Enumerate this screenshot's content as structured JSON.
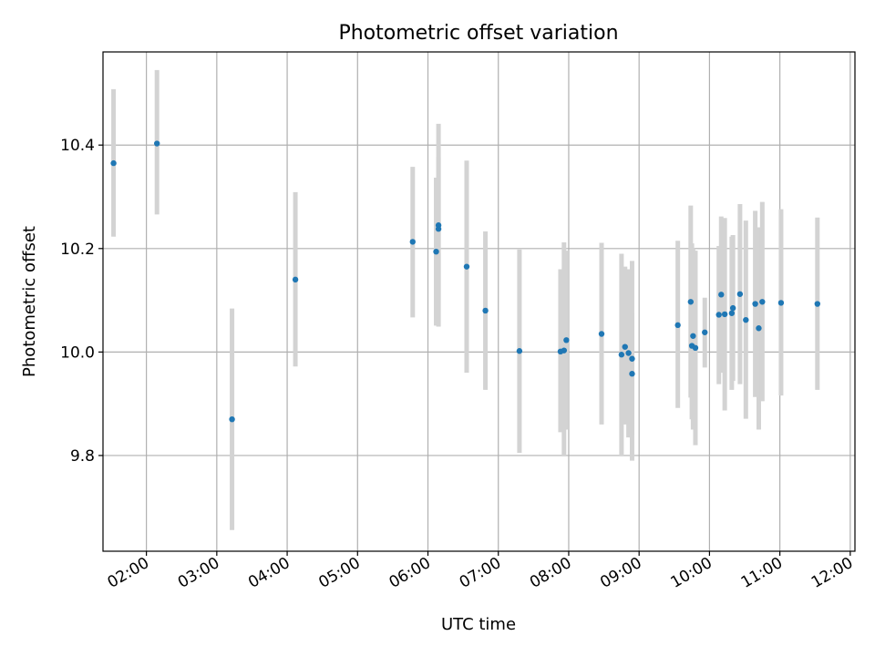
{
  "chart_data": {
    "type": "scatter",
    "title": "Photometric offset variation",
    "xlabel": "UTC time",
    "ylabel": "Photometric offset",
    "grid": true,
    "xlim": [
      "01:23",
      "12:04"
    ],
    "ylim": [
      9.615,
      10.58
    ],
    "x_ticks": [
      "02:00",
      "03:00",
      "04:00",
      "05:00",
      "06:00",
      "07:00",
      "08:00",
      "09:00",
      "10:00",
      "11:00",
      "12:00"
    ],
    "y_ticks": [
      9.8,
      10.0,
      10.2,
      10.4
    ],
    "colors": {
      "points": "#1f77b4",
      "errorbars": "#d3d3d3"
    },
    "points": [
      {
        "t": "01:32",
        "y": 10.365,
        "lo": 10.223,
        "hi": 10.508
      },
      {
        "t": "02:09",
        "y": 10.403,
        "lo": 10.266,
        "hi": 10.545
      },
      {
        "t": "03:13",
        "y": 9.87,
        "lo": 9.656,
        "hi": 10.084
      },
      {
        "t": "04:07",
        "y": 10.14,
        "lo": 9.972,
        "hi": 10.309
      },
      {
        "t": "05:47",
        "y": 10.213,
        "lo": 10.067,
        "hi": 10.358
      },
      {
        "t": "06:07",
        "y": 10.194,
        "lo": 10.051,
        "hi": 10.337
      },
      {
        "t": "06:09",
        "y": 10.245,
        "lo": 10.049,
        "hi": 10.441
      },
      {
        "t": "06:09",
        "y": 10.238,
        "lo": 10.1,
        "hi": 10.376
      },
      {
        "t": "06:33",
        "y": 10.165,
        "lo": 9.96,
        "hi": 10.37
      },
      {
        "t": "06:49",
        "y": 10.08,
        "lo": 9.927,
        "hi": 10.233
      },
      {
        "t": "07:18",
        "y": 10.002,
        "lo": 9.805,
        "hi": 10.198
      },
      {
        "t": "07:53",
        "y": 10.001,
        "lo": 9.845,
        "hi": 10.16
      },
      {
        "t": "07:56",
        "y": 10.003,
        "lo": 9.8,
        "hi": 10.212
      },
      {
        "t": "07:58",
        "y": 10.023,
        "lo": 9.85,
        "hi": 10.196
      },
      {
        "t": "08:28",
        "y": 10.035,
        "lo": 9.86,
        "hi": 10.211
      },
      {
        "t": "08:45",
        "y": 9.995,
        "lo": 9.8,
        "hi": 10.19
      },
      {
        "t": "08:48",
        "y": 10.01,
        "lo": 9.86,
        "hi": 10.165
      },
      {
        "t": "08:51",
        "y": 9.998,
        "lo": 9.835,
        "hi": 10.16
      },
      {
        "t": "08:54",
        "y": 9.987,
        "lo": 9.79,
        "hi": 10.176
      },
      {
        "t": "08:54",
        "y": 9.958,
        "lo": 9.84,
        "hi": 10.076
      },
      {
        "t": "09:33",
        "y": 10.052,
        "lo": 9.892,
        "hi": 10.215
      },
      {
        "t": "09:44",
        "y": 10.097,
        "lo": 9.912,
        "hi": 10.283
      },
      {
        "t": "09:45",
        "y": 10.012,
        "lo": 9.87,
        "hi": 10.21
      },
      {
        "t": "09:46",
        "y": 10.031,
        "lo": 9.85,
        "hi": 10.2
      },
      {
        "t": "09:48",
        "y": 10.008,
        "lo": 9.82,
        "hi": 10.196
      },
      {
        "t": "09:56",
        "y": 10.038,
        "lo": 9.97,
        "hi": 10.105
      },
      {
        "t": "10:08",
        "y": 10.072,
        "lo": 9.938,
        "hi": 10.205
      },
      {
        "t": "10:10",
        "y": 10.111,
        "lo": 9.96,
        "hi": 10.262
      },
      {
        "t": "10:13",
        "y": 10.073,
        "lo": 9.887,
        "hi": 10.259
      },
      {
        "t": "10:19",
        "y": 10.075,
        "lo": 9.927,
        "hi": 10.223
      },
      {
        "t": "10:20",
        "y": 10.085,
        "lo": 9.944,
        "hi": 10.226
      },
      {
        "t": "10:26",
        "y": 10.112,
        "lo": 9.938,
        "hi": 10.286
      },
      {
        "t": "10:31",
        "y": 10.062,
        "lo": 9.871,
        "hi": 10.254
      },
      {
        "t": "10:39",
        "y": 10.093,
        "lo": 9.913,
        "hi": 10.273
      },
      {
        "t": "10:42",
        "y": 10.046,
        "lo": 9.85,
        "hi": 10.241
      },
      {
        "t": "10:45",
        "y": 10.097,
        "lo": 9.905,
        "hi": 10.29
      },
      {
        "t": "11:01",
        "y": 10.095,
        "lo": 9.916,
        "hi": 10.276
      },
      {
        "t": "11:32",
        "y": 10.093,
        "lo": 9.927,
        "hi": 10.26
      }
    ]
  }
}
